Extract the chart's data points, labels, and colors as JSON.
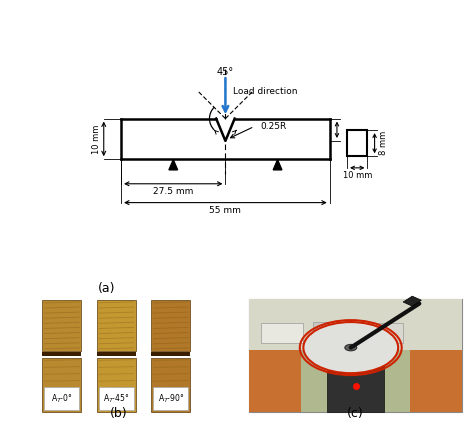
{
  "fig_width": 4.74,
  "fig_height": 4.26,
  "dpi": 100,
  "label_a": "(a)",
  "label_b": "(b)",
  "label_c": "(c)",
  "angle_label": "45°",
  "load_label": "Load direction",
  "notch_label": "0.25R",
  "dim_10mm_label": "10 mm",
  "dim_275mm_label": "27.5 mm",
  "dim_55mm_label": "55 mm",
  "dim_8mm_label": "8 mm",
  "dim_10mm_w_label": "10 mm",
  "specimen_color": "white",
  "line_color": "black",
  "arrow_color": "#2277cc",
  "bg_color": "white"
}
